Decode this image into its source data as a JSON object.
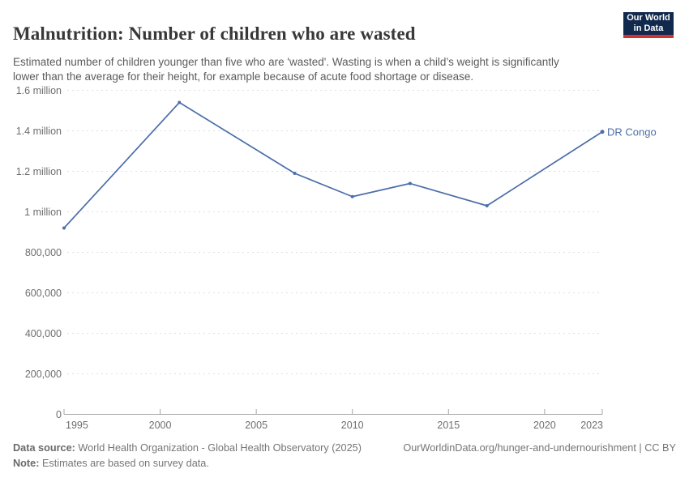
{
  "header": {
    "title": "Malnutrition: Number of children who are wasted",
    "subtitle": "Estimated number of children younger than five who are 'wasted'. Wasting is when a child’s weight is significantly lower than the average for their height, for example because of acute food shortage or disease.",
    "logo": {
      "line1": "Our World",
      "line2": "in Data"
    }
  },
  "chart_data": {
    "type": "line",
    "title": "Malnutrition: Number of children who are wasted",
    "xlabel": "",
    "ylabel": "",
    "x_range": [
      1995,
      2023
    ],
    "ylim": [
      0,
      1600000
    ],
    "grid": "horizontal-dashed",
    "legend_position": "end-of-line-label",
    "series": [
      {
        "name": "DR Congo",
        "color": "#4c6ea9",
        "x": [
          1995,
          2001,
          2007,
          2010,
          2013,
          2017,
          2023
        ],
        "values": [
          920000,
          1540000,
          1190000,
          1075000,
          1140000,
          1030000,
          1395000
        ]
      }
    ],
    "yticks": [
      {
        "v": 0,
        "label": "0"
      },
      {
        "v": 200000,
        "label": "200,000"
      },
      {
        "v": 400000,
        "label": "400,000"
      },
      {
        "v": 600000,
        "label": "600,000"
      },
      {
        "v": 800000,
        "label": "800,000"
      },
      {
        "v": 1000000,
        "label": "1 million"
      },
      {
        "v": 1200000,
        "label": "1.2 million"
      },
      {
        "v": 1400000,
        "label": "1.4 million"
      },
      {
        "v": 1600000,
        "label": "1.6 million"
      }
    ],
    "xticks": [
      {
        "v": 1995,
        "label": "1995"
      },
      {
        "v": 2000,
        "label": "2000"
      },
      {
        "v": 2005,
        "label": "2005"
      },
      {
        "v": 2010,
        "label": "2010"
      },
      {
        "v": 2015,
        "label": "2015"
      },
      {
        "v": 2020,
        "label": "2020"
      },
      {
        "v": 2023,
        "label": "2023"
      }
    ],
    "end_label": "DR Congo"
  },
  "footer": {
    "datasource_label": "Data source:",
    "datasource_text": " World Health Organization - Global Health Observatory (2025)",
    "rights": "OurWorldinData.org/hunger-and-undernourishment | CC BY",
    "note_label": "Note:",
    "note_text": " Estimates are based on survey data."
  },
  "colors": {
    "line": "#4c6ea9",
    "gridline": "#e0e0e0",
    "axis": "#a5a5a5",
    "tick_label": "#6e6e6e",
    "logo_bg": "#12294e",
    "logo_accent": "#d0342c"
  }
}
